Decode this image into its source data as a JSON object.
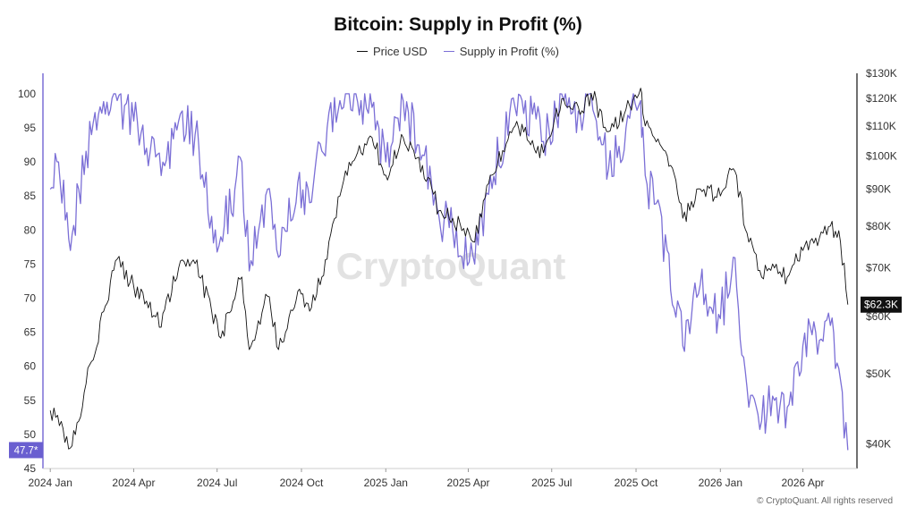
{
  "chart_data": {
    "type": "line",
    "title": "Bitcoin: Supply in Profit (%)",
    "watermark": "CryptoQuant",
    "copyright": "© CryptoQuant. All rights reserved",
    "legend": [
      {
        "name": "Price USD",
        "color": "#111111"
      },
      {
        "name": "Supply in Profit (%)",
        "color": "#7b6fd6"
      }
    ],
    "x_ticks": [
      "2024 Jan",
      "2024 Apr",
      "2024 Jul",
      "2024 Oct",
      "2025 Jan",
      "2025 Apr",
      "2025 Jul",
      "2025 Oct",
      "2026 Jan",
      "2026 Apr"
    ],
    "y_left": {
      "ticks": [
        45,
        50,
        55,
        60,
        65,
        70,
        75,
        80,
        85,
        90,
        95,
        100
      ],
      "range": [
        45,
        103
      ]
    },
    "y_right": {
      "ticks": [
        "$40K",
        "$50K",
        "$60K",
        "$70K",
        "$80K",
        "$90K",
        "$100K",
        "$110K",
        "$120K",
        "$130K"
      ],
      "tick_values": [
        40000,
        50000,
        60000,
        70000,
        80000,
        90000,
        100000,
        110000,
        120000,
        130000
      ],
      "scale": "log",
      "range": [
        37000,
        130000
      ]
    },
    "last_values": {
      "supply_label": "47.7*",
      "price_label": "$62.3K"
    },
    "series": [
      {
        "name": "Price USD",
        "axis": "right",
        "x": [
          "2024-01-01",
          "2024-01-15",
          "2024-01-23",
          "2024-02-01",
          "2024-02-15",
          "2024-03-01",
          "2024-03-14",
          "2024-04-01",
          "2024-04-15",
          "2024-05-01",
          "2024-05-20",
          "2024-06-07",
          "2024-06-25",
          "2024-07-05",
          "2024-07-28",
          "2024-08-05",
          "2024-08-25",
          "2024-09-06",
          "2024-09-27",
          "2024-10-10",
          "2024-10-29",
          "2024-11-12",
          "2024-11-22",
          "2024-12-05",
          "2024-12-17",
          "2025-01-01",
          "2025-01-20",
          "2025-02-10",
          "2025-02-28",
          "2025-03-15",
          "2025-04-08",
          "2025-04-25",
          "2025-05-22",
          "2025-06-10",
          "2025-06-22",
          "2025-07-14",
          "2025-08-01",
          "2025-08-13",
          "2025-09-01",
          "2025-09-20",
          "2025-10-06",
          "2025-10-11",
          "2025-11-04",
          "2025-11-21",
          "2025-12-10",
          "2026-01-01",
          "2026-01-15",
          "2026-02-01",
          "2026-02-15",
          "2026-03-01",
          "2026-03-15",
          "2026-04-01",
          "2026-04-15",
          "2026-05-01",
          "2026-05-12",
          "2026-05-20"
        ],
        "values": [
          44500,
          42000,
          39500,
          43000,
          52000,
          62000,
          72000,
          66000,
          63000,
          58000,
          70000,
          71000,
          61000,
          56000,
          68000,
          54000,
          64000,
          54000,
          65000,
          61000,
          72000,
          88000,
          98000,
          101000,
          106000,
          94000,
          106000,
          97000,
          84000,
          82000,
          76000,
          94000,
          110000,
          105000,
          101000,
          120000,
          114000,
          122000,
          108000,
          116000,
          124000,
          110000,
          100000,
          82000,
          90000,
          88000,
          96000,
          76000,
          68000,
          70000,
          68000,
          74000,
          77000,
          80000,
          76000,
          62300
        ]
      },
      {
        "name": "Supply in Profit (%)",
        "axis": "left",
        "x": [
          "2024-01-01",
          "2024-01-10",
          "2024-01-23",
          "2024-02-01",
          "2024-02-15",
          "2024-03-01",
          "2024-03-14",
          "2024-04-01",
          "2024-04-15",
          "2024-05-01",
          "2024-05-20",
          "2024-06-07",
          "2024-06-25",
          "2024-07-05",
          "2024-07-28",
          "2024-08-05",
          "2024-08-25",
          "2024-09-06",
          "2024-09-27",
          "2024-10-10",
          "2024-10-29",
          "2024-11-12",
          "2024-11-22",
          "2024-12-05",
          "2024-12-17",
          "2025-01-01",
          "2025-01-20",
          "2025-02-10",
          "2025-02-28",
          "2025-03-15",
          "2025-04-08",
          "2025-04-25",
          "2025-05-22",
          "2025-06-10",
          "2025-06-22",
          "2025-07-14",
          "2025-08-01",
          "2025-08-13",
          "2025-09-01",
          "2025-09-20",
          "2025-10-06",
          "2025-10-11",
          "2025-11-04",
          "2025-11-21",
          "2025-12-10",
          "2026-01-01",
          "2026-01-15",
          "2026-02-01",
          "2026-02-15",
          "2026-03-01",
          "2026-03-15",
          "2026-04-01",
          "2026-04-15",
          "2026-05-01",
          "2026-05-12",
          "2026-05-20"
        ],
        "values": [
          86,
          90,
          77,
          86,
          94,
          97,
          99,
          96,
          92,
          88,
          96,
          94,
          82,
          79,
          90,
          74,
          86,
          76,
          87,
          84,
          95,
          99,
          100,
          99,
          98,
          90,
          99,
          91,
          82,
          80,
          75,
          88,
          98,
          97,
          93,
          99,
          97,
          100,
          89,
          95,
          99,
          88,
          77,
          63,
          72,
          67,
          76,
          54,
          52,
          55,
          54,
          63,
          65,
          66,
          58,
          47.7
        ]
      }
    ]
  }
}
